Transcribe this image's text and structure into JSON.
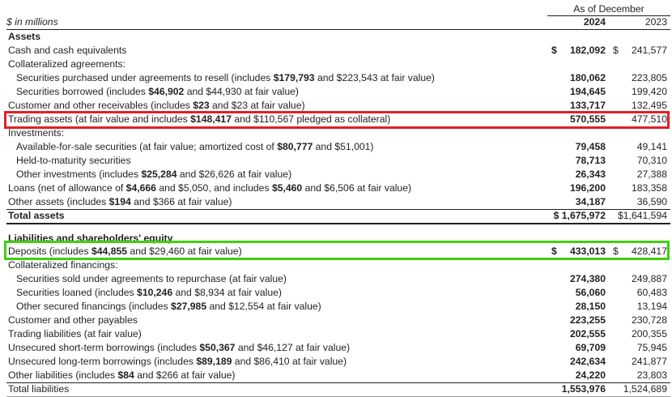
{
  "header": {
    "as_of": "As of December",
    "units": "$ in millions",
    "year1": "2024",
    "year2": "2023"
  },
  "assets": {
    "section_label": "Assets",
    "cash": {
      "label": "Cash and cash equivalents",
      "cur1": "$",
      "v1": "182,092",
      "cur2": "$",
      "v2": "241,577"
    },
    "collateralized_agreements": {
      "label": "Collateralized agreements:"
    },
    "resale": {
      "pre": "Securities purchased under agreements to resell (includes ",
      "b": "$179,793",
      "post": " and $223,543 at fair value)",
      "v1": "180,062",
      "v2": "223,805"
    },
    "borrowed": {
      "pre": "Securities borrowed (includes ",
      "b": "$46,902",
      "post": " and $44,930 at fair value)",
      "v1": "194,645",
      "v2": "199,420"
    },
    "receivables": {
      "pre": "Customer and other receivables (includes ",
      "b": "$23",
      "post": " and $23 at fair value)",
      "v1": "133,717",
      "v2": "132,495"
    },
    "trading_assets": {
      "pre": "Trading assets (at fair value and includes ",
      "b": "$148,417",
      "post": " and $110,567 pledged as collateral)",
      "v1": "570,555",
      "v2": "477,510"
    },
    "investments": {
      "label": "Investments:"
    },
    "afs": {
      "pre": "Available-for-sale securities (at fair value; amortized cost of ",
      "b": "$80,777",
      "post": " and $51,001)",
      "v1": "79,458",
      "v2": "49,141"
    },
    "htm": {
      "label": "Held-to-maturity securities",
      "v1": "78,713",
      "v2": "70,310"
    },
    "other_investments": {
      "pre": "Other investments (includes ",
      "b": "$25,284",
      "post": " and $26,626 at fair value)",
      "v1": "26,343",
      "v2": "27,388"
    },
    "loans": {
      "pre": "Loans (net of allowance of ",
      "b1": "$4,666",
      "mid": " and $5,050, and includes ",
      "b2": "$5,460",
      "post": " and $6,506 at fair value)",
      "v1": "196,200",
      "v2": "183,358"
    },
    "other_assets": {
      "pre": "Other assets (includes ",
      "b": "$194",
      "post": " and $366 at fair value)",
      "v1": "34,187",
      "v2": "36,590"
    },
    "total": {
      "label": "Total assets",
      "v1": "$ 1,675,972",
      "v2": "$1,641,594"
    }
  },
  "liabilities": {
    "section_label": "Liabilities and shareholders' equity",
    "deposits": {
      "pre": "Deposits (includes ",
      "b": "$44,855",
      "post": " and $29,460 at fair value)",
      "cur1": "$",
      "v1": "433,013",
      "cur2": "$",
      "v2": "428,417"
    },
    "collateralized_financings": {
      "label": "Collateralized financings:"
    },
    "repurchase": {
      "label": "Securities sold under agreements to repurchase (at fair value)",
      "v1": "274,380",
      "v2": "249,887"
    },
    "loaned": {
      "pre": "Securities loaned (includes ",
      "b": "$10,246",
      "post": " and $8,934 at fair value)",
      "v1": "56,060",
      "v2": "60,483"
    },
    "other_secured": {
      "pre": "Other secured financings (includes ",
      "b": "$27,985",
      "post": " and $12,554 at fair value)",
      "v1": "28,150",
      "v2": "13,194"
    },
    "payables": {
      "label": "Customer and other payables",
      "v1": "223,255",
      "v2": "230,728"
    },
    "trading_liabilities": {
      "label": "Trading liabilities (at fair value)",
      "v1": "202,555",
      "v2": "200,355"
    },
    "short_term": {
      "pre": "Unsecured short-term borrowings (includes ",
      "b": "$50,367",
      "post": " and $46,127 at fair value)",
      "v1": "69,709",
      "v2": "75,945"
    },
    "long_term": {
      "pre": "Unsecured long-term borrowings (includes ",
      "b": "$89,189",
      "post": " and $86,410 at fair value)",
      "v1": "242,634",
      "v2": "241,877"
    },
    "other_liabilities": {
      "pre": "Other liabilities (includes ",
      "b": "$84",
      "post": " and $266 at fair value)",
      "v1": "24,220",
      "v2": "23,803"
    },
    "total": {
      "label": "Total liabilities",
      "v1": "1,553,976",
      "v2": "1,524,689"
    }
  },
  "highlight_colors": {
    "red": "#e41e26",
    "green": "#3fd10a"
  }
}
